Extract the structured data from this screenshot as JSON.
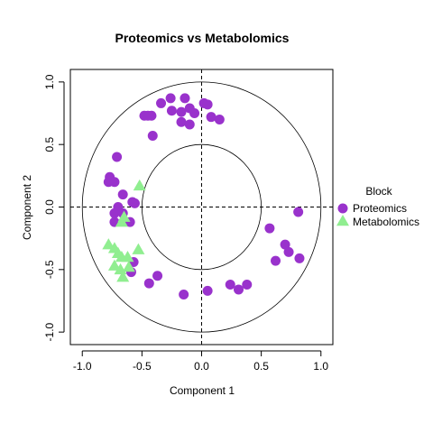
{
  "colors": {
    "proteomics": "#9932CC",
    "metabolomics": "#90EE90",
    "axis": "#000000"
  },
  "chart_data": {
    "type": "scatter",
    "title": "Proteomics vs Metabolomics",
    "xlabel": "Component 1",
    "ylabel": "Component 2",
    "xlim": [
      -1.1,
      1.1
    ],
    "ylim": [
      -1.1,
      1.1
    ],
    "x_ticks": [
      -1.0,
      -0.5,
      0.0,
      0.5,
      1.0
    ],
    "y_ticks": [
      -1.0,
      -0.5,
      0.0,
      0.5,
      1.0
    ],
    "x_tick_labels": [
      "-1.0",
      "-0.5",
      "0.0",
      "0.5",
      "1.0"
    ],
    "y_tick_labels": [
      "-1.0",
      "-0.5",
      "0.0",
      "0.5",
      "1.0"
    ],
    "circles": [
      1.0,
      0.5
    ],
    "grid": false,
    "reference_lines": [
      0,
      0
    ],
    "legend": {
      "title": "Block",
      "placement": "right",
      "entries": [
        "Proteomics",
        "Metabolomics"
      ]
    },
    "series": [
      {
        "name": "Proteomics",
        "marker": "circle",
        "points": [
          [
            -0.42,
            0.73
          ],
          [
            -0.45,
            0.73
          ],
          [
            -0.48,
            0.73
          ],
          [
            -0.34,
            0.83
          ],
          [
            -0.26,
            0.87
          ],
          [
            -0.25,
            0.77
          ],
          [
            -0.17,
            0.76
          ],
          [
            -0.14,
            0.87
          ],
          [
            -0.1,
            0.79
          ],
          [
            -0.06,
            0.75
          ],
          [
            0.02,
            0.83
          ],
          [
            0.05,
            0.82
          ],
          [
            0.08,
            0.72
          ],
          [
            0.15,
            0.7
          ],
          [
            -0.17,
            0.68
          ],
          [
            -0.1,
            0.66
          ],
          [
            -0.41,
            0.57
          ],
          [
            -0.71,
            0.4
          ],
          [
            -0.77,
            0.24
          ],
          [
            -0.78,
            0.2
          ],
          [
            -0.73,
            0.2
          ],
          [
            -0.66,
            0.1
          ],
          [
            -0.56,
            0.03
          ],
          [
            -0.58,
            0.04
          ],
          [
            -0.7,
            0.0
          ],
          [
            -0.66,
            -0.05
          ],
          [
            -0.73,
            -0.05
          ],
          [
            -0.73,
            -0.12
          ],
          [
            -0.6,
            -0.12
          ],
          [
            -0.57,
            -0.44
          ],
          [
            -0.59,
            -0.52
          ],
          [
            -0.37,
            -0.55
          ],
          [
            -0.44,
            -0.61
          ],
          [
            -0.15,
            -0.7
          ],
          [
            0.05,
            -0.67
          ],
          [
            0.24,
            -0.62
          ],
          [
            0.31,
            -0.66
          ],
          [
            0.38,
            -0.62
          ],
          [
            0.57,
            -0.17
          ],
          [
            0.7,
            -0.3
          ],
          [
            0.73,
            -0.36
          ],
          [
            0.81,
            -0.04
          ],
          [
            0.82,
            -0.41
          ],
          [
            0.62,
            -0.43
          ]
        ]
      },
      {
        "name": "Metabolomics",
        "marker": "triangle",
        "points": [
          [
            -0.52,
            0.17
          ],
          [
            -0.65,
            -0.08
          ],
          [
            -0.67,
            -0.12
          ],
          [
            -0.78,
            -0.3
          ],
          [
            -0.73,
            -0.33
          ],
          [
            -0.7,
            -0.37
          ],
          [
            -0.67,
            -0.4
          ],
          [
            -0.62,
            -0.4
          ],
          [
            -0.53,
            -0.34
          ],
          [
            -0.73,
            -0.47
          ],
          [
            -0.68,
            -0.5
          ],
          [
            -0.61,
            -0.48
          ],
          [
            -0.66,
            -0.56
          ]
        ]
      }
    ]
  }
}
